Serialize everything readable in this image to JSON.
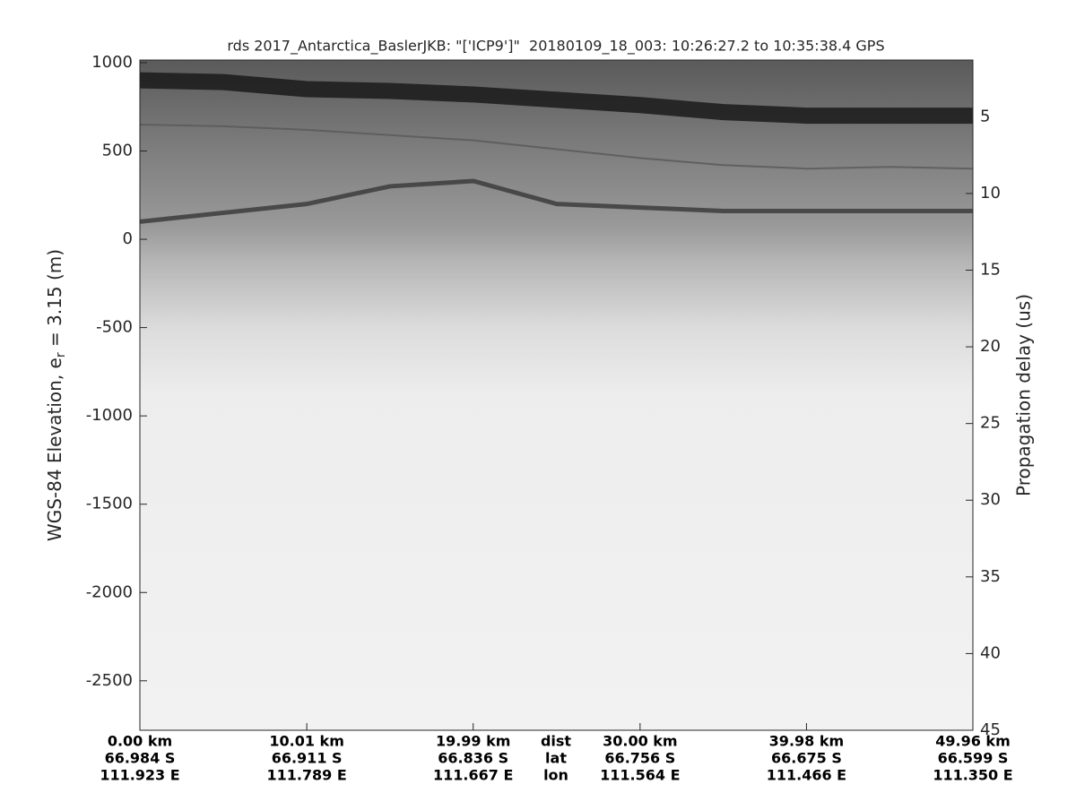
{
  "chart_data": {
    "type": "radargram",
    "title": "rds 2017_Antarctica_BaslerJKB: \"['ICP9']\"  20180109_18_003: 10:26:27.2 to 10:35:38.4 GPS",
    "ylabel_parts": [
      "WGS-84 Elevation, e",
      "r",
      " = 3.15 (m)"
    ],
    "y2label": "Propagation delay (us)",
    "xlim": [
      0,
      49.96
    ],
    "xticks": [
      {
        "value": 0,
        "label": "0.00 km"
      },
      {
        "value": 10.01,
        "label": "10.01 km"
      },
      {
        "value": 19.99,
        "label": "19.99 km"
      },
      {
        "value": 30.0,
        "label": "30.00 km"
      },
      {
        "value": 39.98,
        "label": "39.98 km"
      },
      {
        "value": 49.96,
        "label": "49.96 km"
      }
    ],
    "lat_labels": [
      "66.984 S",
      "66.911 S",
      "66.836 S",
      "66.756 S",
      "66.675 S",
      "66.599 S"
    ],
    "lon_labels": [
      "111.923 E",
      "111.789 E",
      "111.667 E",
      "111.564 E",
      "111.466 E",
      "111.350 E"
    ],
    "row_labels": [
      "dist",
      "lat",
      "lon"
    ],
    "ylim": [
      -2780,
      1015
    ],
    "yticks": [
      1000,
      500,
      0,
      -500,
      -1000,
      -1500,
      -2000,
      -2500
    ],
    "y2lim": [
      1.3,
      45
    ],
    "y2ticks": [
      5,
      10,
      15,
      20,
      25,
      30,
      35,
      40,
      45
    ],
    "x": [
      0,
      5,
      10,
      15,
      20,
      25,
      30,
      35,
      40,
      45,
      49.96
    ],
    "series": [
      {
        "color": "#1a1a1a",
        "values": [
          900,
          890,
          850,
          840,
          820,
          790,
          760,
          720,
          700,
          700,
          700
        ]
      },
      {
        "color": "#5a5a5a",
        "values": [
          650,
          640,
          620,
          590,
          560,
          510,
          460,
          420,
          400,
          410,
          400
        ]
      },
      {
        "color": "#3c3c3c",
        "values": [
          100,
          150,
          200,
          300,
          330,
          200,
          180,
          160,
          160,
          160,
          160
        ]
      }
    ]
  }
}
